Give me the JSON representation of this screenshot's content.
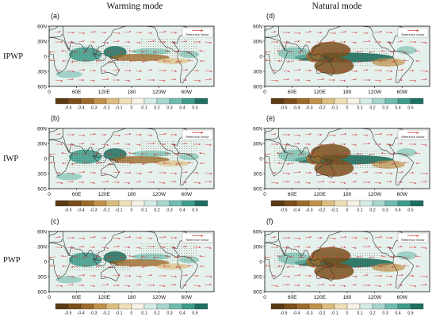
{
  "columns": [
    {
      "title": "Warming mode"
    },
    {
      "title": "Natural mode"
    }
  ],
  "rows": [
    {
      "label": "IPWP"
    },
    {
      "label": "IWP"
    },
    {
      "label": "PWP"
    }
  ],
  "panels": [
    {
      "letter": "(a)",
      "mode": "warming"
    },
    {
      "letter": "(d)",
      "mode": "natural"
    },
    {
      "letter": "(b)",
      "mode": "warming"
    },
    {
      "letter": "(e)",
      "mode": "natural"
    },
    {
      "letter": "(c)",
      "mode": "warming"
    },
    {
      "letter": "(f)",
      "mode": "natural"
    }
  ],
  "axes": {
    "lat_ticks": [
      "60N",
      "30N",
      "0",
      "30S",
      "60S"
    ],
    "lon_ticks": [
      "0",
      "60E",
      "120E",
      "180",
      "120W",
      "60W"
    ]
  },
  "reference_vector_label": "Reference Vector",
  "colorbar": {
    "labels": [
      "-0.5",
      "-0.4",
      "-0.3",
      "-0.2",
      "-0.1",
      "0",
      "0.1",
      "0.2",
      "0.3",
      "0.4",
      "0.5"
    ],
    "colors": [
      "#5a3a12",
      "#7b4f1c",
      "#9c6a2c",
      "#c0914a",
      "#dcbd80",
      "#efe0b8",
      "#f6f2e4",
      "#d4ebe6",
      "#a6d6cd",
      "#6fbcae",
      "#3d9c8c",
      "#1f6f60"
    ]
  }
}
